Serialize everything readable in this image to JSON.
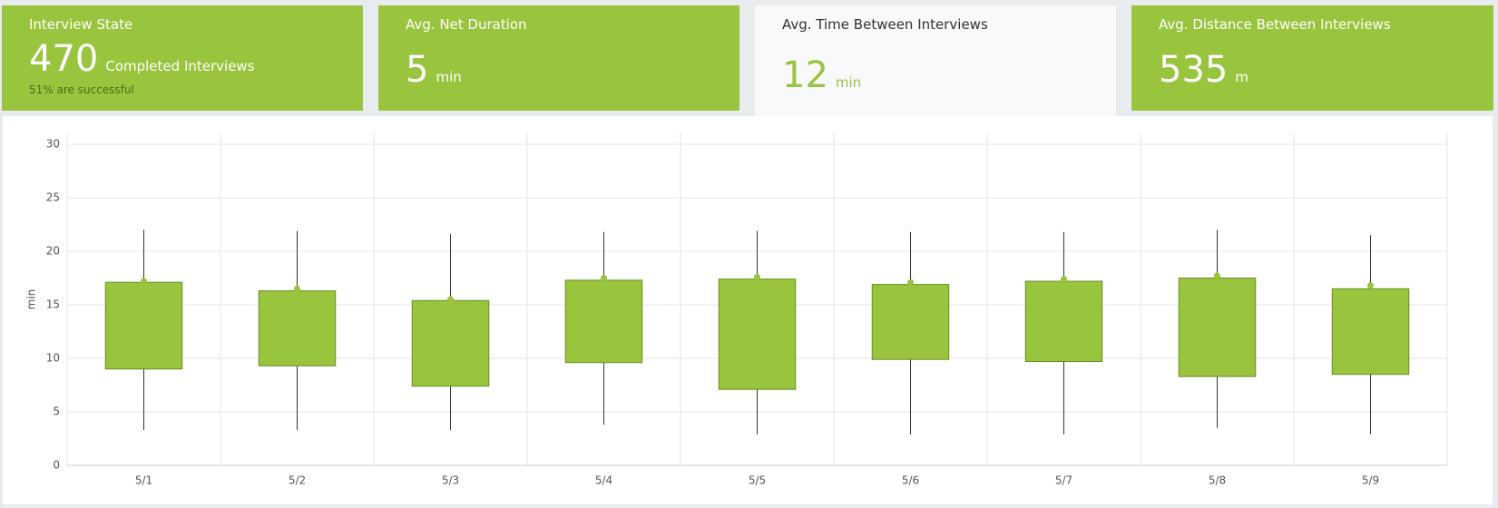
{
  "cards": [
    {
      "title": "Interview State",
      "value": 470,
      "unit": "Completed Interviews",
      "note": "51% are successful"
    },
    {
      "title": "Avg. Net Duration",
      "value": 5,
      "unit": "min"
    },
    {
      "title": "Avg. Time Between Interviews",
      "value": 12,
      "unit": "min"
    },
    {
      "title": "Avg. Distance Between Interviews",
      "value": 535,
      "unit": "m"
    }
  ],
  "chart_data": {
    "type": "box",
    "ylabel": "min",
    "color": "#99c43e",
    "edge": "#6a8f22",
    "grid": true,
    "categories": [
      "5/1",
      "5/2",
      "5/3",
      "5/4",
      "5/5",
      "5/6",
      "5/7",
      "5/8",
      "5/9"
    ],
    "low": [
      3.3,
      3.3,
      3.3,
      3.8,
      2.9,
      2.9,
      2.9,
      3.5,
      2.9
    ],
    "q1": [
      9.0,
      9.3,
      7.4,
      9.6,
      7.1,
      9.9,
      9.7,
      8.3,
      8.5
    ],
    "q3": [
      17.1,
      16.3,
      15.4,
      17.3,
      17.4,
      16.9,
      17.2,
      17.5,
      16.5
    ],
    "high": [
      22.0,
      21.9,
      21.6,
      21.8,
      21.9,
      21.8,
      21.8,
      22.0,
      21.5
    ],
    "marker": [
      17.2,
      16.5,
      15.5,
      17.5,
      17.6,
      17.1,
      17.4,
      17.7,
      16.8
    ],
    "ylim": [
      0,
      30
    ],
    "yticks": [
      0,
      5,
      10,
      15,
      20,
      25,
      30
    ]
  }
}
